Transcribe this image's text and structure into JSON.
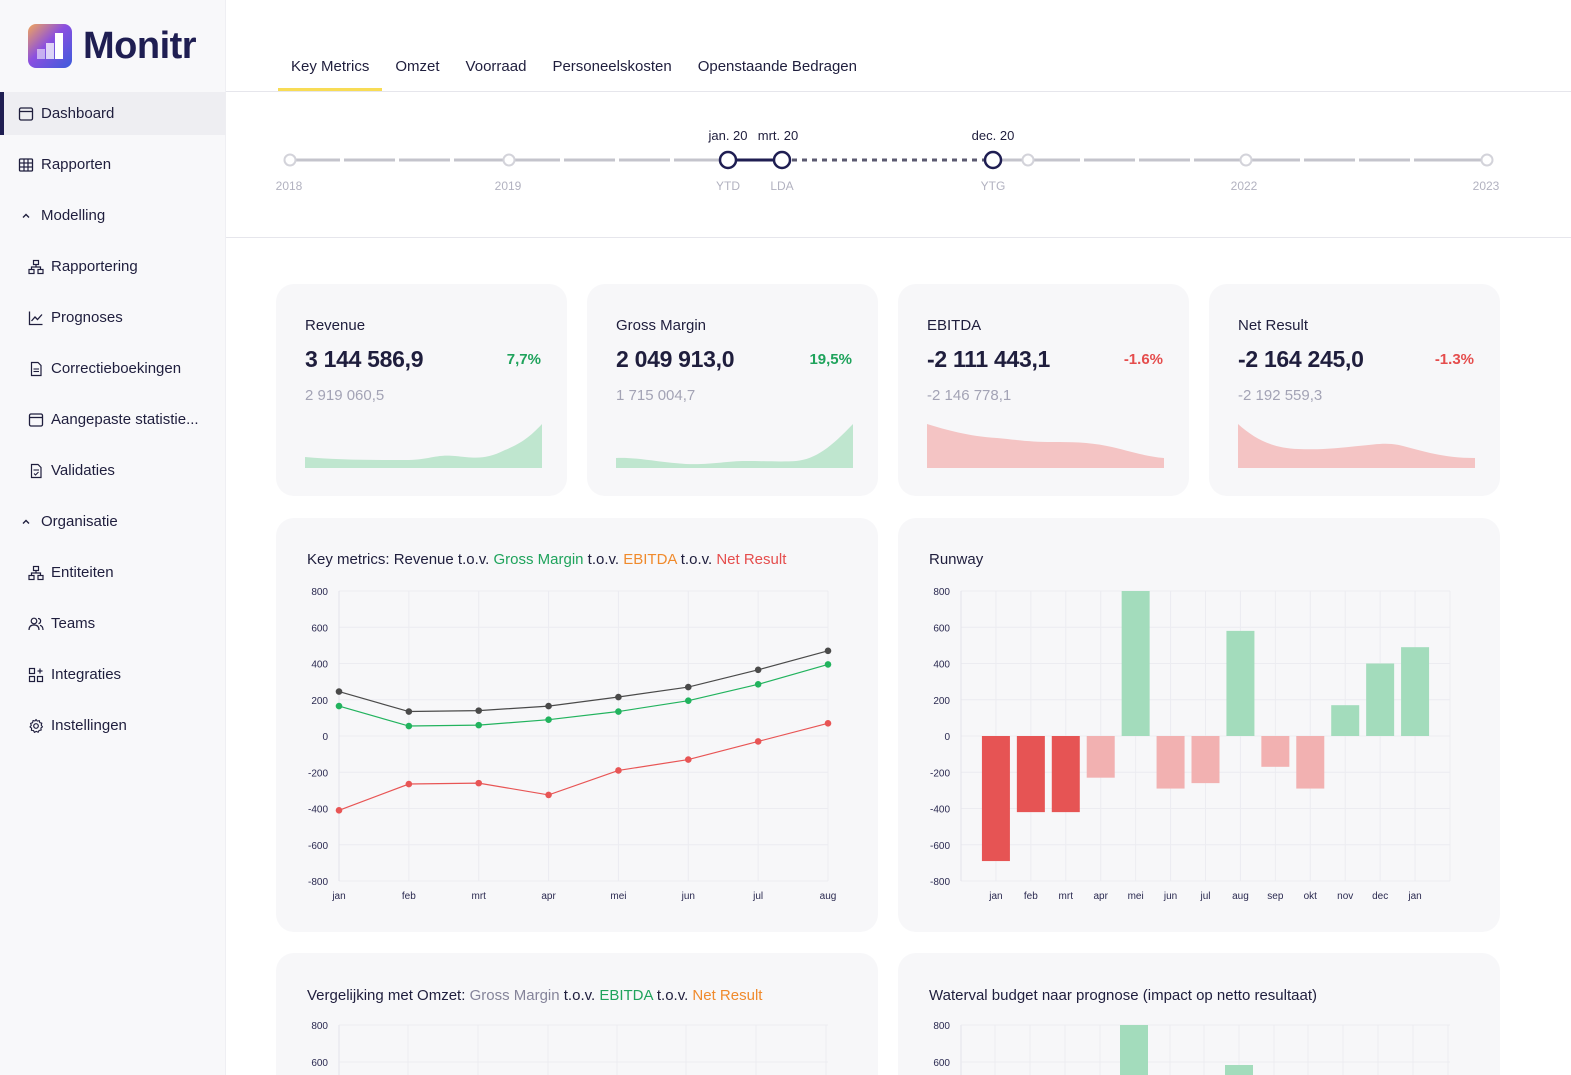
{
  "app": {
    "name": "Monitr"
  },
  "sidebar": {
    "items": [
      {
        "label": "Dashboard",
        "icon": "dashboard-icon"
      },
      {
        "label": "Rapporten",
        "icon": "table-icon"
      },
      {
        "label": "Modelling",
        "icon": "chevron-up-icon"
      },
      {
        "label": "Rapportering",
        "icon": "hierarchy-icon"
      },
      {
        "label": "Prognoses",
        "icon": "line-chart-icon"
      },
      {
        "label": "Correctieboekingen",
        "icon": "document-icon"
      },
      {
        "label": "Aangepaste statistie...",
        "icon": "window-icon"
      },
      {
        "label": "Validaties",
        "icon": "document-check-icon"
      },
      {
        "label": "Organisatie",
        "icon": "chevron-up-icon"
      },
      {
        "label": "Entiteiten",
        "icon": "hierarchy-icon"
      },
      {
        "label": "Teams",
        "icon": "users-icon"
      },
      {
        "label": "Integraties",
        "icon": "grid-plus-icon"
      },
      {
        "label": "Instellingen",
        "icon": "gear-icon"
      }
    ]
  },
  "tabs": [
    {
      "label": "Key Metrics",
      "active": true
    },
    {
      "label": "Omzet"
    },
    {
      "label": "Voorraad"
    },
    {
      "label": "Personeelskosten"
    },
    {
      "label": "Openstaande Bedragen"
    }
  ],
  "timeline": {
    "years": [
      "2018",
      "2019",
      "2022",
      "2023"
    ],
    "markers": [
      {
        "top": "jan. 20",
        "bottom": "YTD"
      },
      {
        "top": "mrt. 20",
        "bottom": "LDA"
      },
      {
        "top": "dec. 20",
        "bottom": "YTG"
      }
    ]
  },
  "kpis": [
    {
      "title": "Revenue",
      "value": "3 144 586,9",
      "pct": "7,7%",
      "prev": "2 919 060,5",
      "trend": "up"
    },
    {
      "title": "Gross Margin",
      "value": "2 049 913,0",
      "pct": "19,5%",
      "prev": "1 715 004,7",
      "trend": "up"
    },
    {
      "title": "EBITDA",
      "value": "-2 111 443,1",
      "pct": "-1.6%",
      "prev": "-2 146 778,1",
      "trend": "down"
    },
    {
      "title": "Net Result",
      "value": "-2 164 245,0",
      "pct": "-1.3%",
      "prev": "-2 192 559,3",
      "trend": "down"
    }
  ],
  "colors": {
    "green": "#1fa35c",
    "red": "#e54d4d",
    "orange": "#f08a2c",
    "grey": "#85849a",
    "dark": "#1f1e3d",
    "area_green": "#bfe6cf",
    "area_red": "#f4c4c4"
  },
  "charts": {
    "key_metrics": {
      "title_parts": [
        "Key metrics: ",
        "Revenue",
        " t.o.v. ",
        "Gross Margin",
        " t.o.v. ",
        "EBITDA",
        " t.o.v. ",
        "Net Result"
      ]
    },
    "runway": {
      "title": "Runway"
    },
    "vergelijking": {
      "title_parts": [
        "Vergelijking met Omzet: ",
        "Gross Margin",
        " t.o.v. ",
        "EBITDA",
        " t.o.v. ",
        "Net Result"
      ],
      "yticks": [
        "800",
        "600"
      ]
    },
    "waterval": {
      "title": "Waterval budget naar prognose (impact op netto resultaat)",
      "yticks": [
        "800",
        "600"
      ]
    }
  },
  "chart_data": [
    {
      "type": "line",
      "title": "Key metrics: Revenue t.o.v. Gross Margin t.o.v. EBITDA t.o.v. Net Result",
      "categories": [
        "jan",
        "feb",
        "mrt",
        "apr",
        "mei",
        "jun",
        "jul",
        "aug"
      ],
      "ylim": [
        -800,
        800
      ],
      "yticks": [
        800,
        600,
        400,
        200,
        0,
        -200,
        -400,
        -600,
        -800
      ],
      "grid": true,
      "series": [
        {
          "color": "#4a4a4a",
          "values": [
            245,
            135,
            140,
            165,
            215,
            270,
            365,
            470
          ]
        },
        {
          "color": "#22b35e",
          "values": [
            165,
            55,
            60,
            90,
            135,
            195,
            285,
            395
          ]
        },
        {
          "color": "#e85555",
          "values": [
            -410,
            -265,
            -260,
            -325,
            -190,
            -130,
            -30,
            70
          ]
        }
      ]
    },
    {
      "type": "bar",
      "title": "Runway",
      "categories": [
        "jan",
        "feb",
        "mrt",
        "apr",
        "mei",
        "jun",
        "jul",
        "aug",
        "sep",
        "okt",
        "nov",
        "dec",
        "jan"
      ],
      "values": [
        -690,
        -420,
        -420,
        -230,
        800,
        -290,
        -260,
        580,
        -170,
        -290,
        170,
        400,
        490
      ],
      "ylim": [
        -800,
        800
      ],
      "yticks": [
        800,
        600,
        400,
        200,
        0,
        -200,
        -400,
        -600,
        -800
      ],
      "grid": true
    }
  ]
}
